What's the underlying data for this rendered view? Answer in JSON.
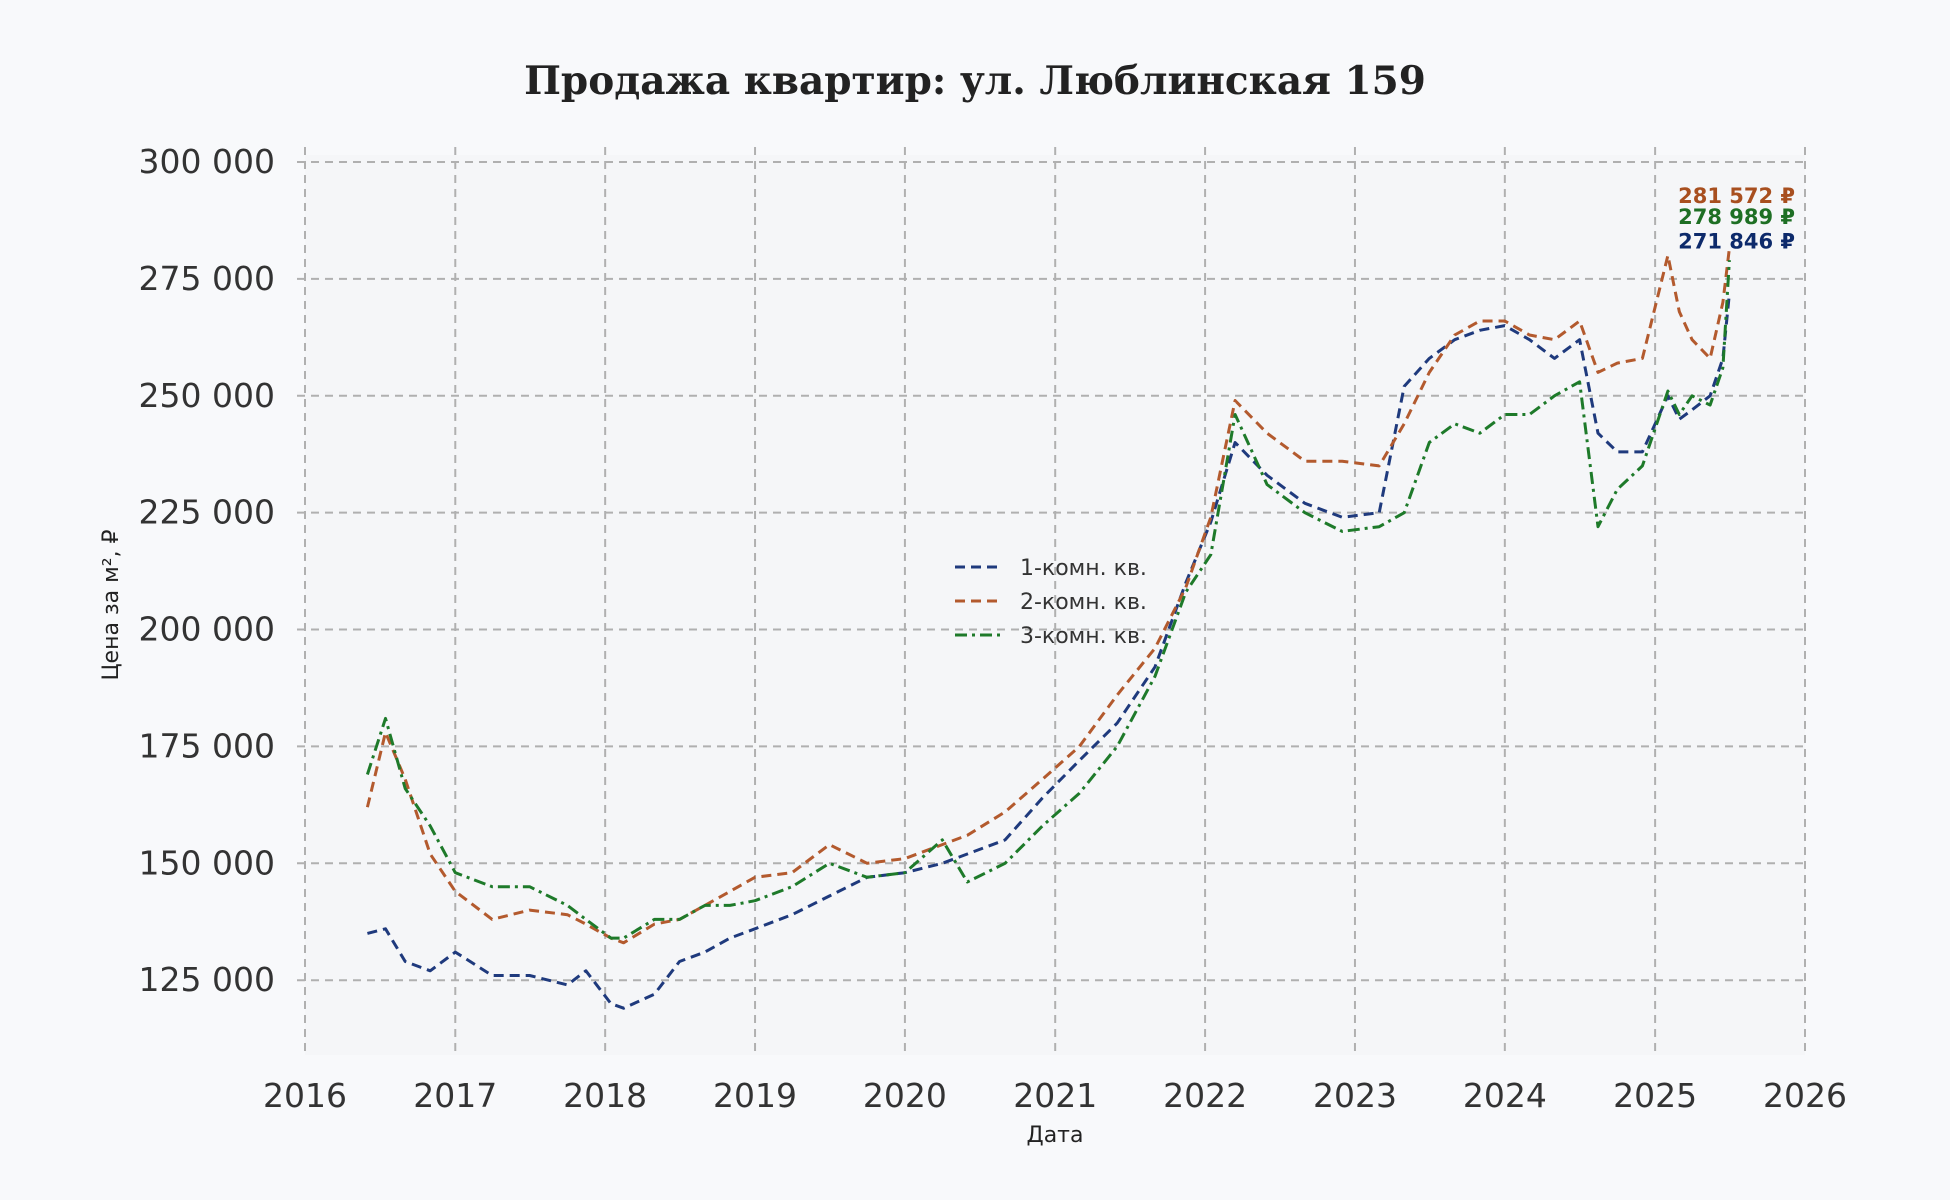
{
  "chart_data": {
    "type": "line",
    "title": "Продажа квартир: ул. Люблинская 159",
    "xlabel": "Дата",
    "ylabel": "Цена за м², ₽",
    "xlim": [
      "2016-01-01",
      "2026-01-01"
    ],
    "ylim": [
      109000,
      301500
    ],
    "x_ticks": [
      "2016",
      "2017",
      "2018",
      "2019",
      "2020",
      "2021",
      "2022",
      "2023",
      "2024",
      "2025",
      "2026"
    ],
    "y_ticks": [
      125000,
      150000,
      175000,
      200000,
      225000,
      250000,
      275000,
      300000
    ],
    "y_tick_labels": [
      "125 000",
      "150 000",
      "175 000",
      "200 000",
      "225 000",
      "250 000",
      "275 000",
      "300 000"
    ],
    "grid": true,
    "legend_position": "center",
    "series": [
      {
        "name": "1-комн. кв.",
        "color": "#1f3a7d",
        "dash": "dashed",
        "end_label": "271 846 ₽",
        "end_label_color": "#0d2a6b",
        "x": [
          "2016-06-01",
          "2016-07-15",
          "2016-09-01",
          "2016-11-01",
          "2017-01-01",
          "2017-04-01",
          "2017-07-01",
          "2017-10-01",
          "2017-11-15",
          "2018-01-15",
          "2018-02-15",
          "2018-05-01",
          "2018-07-01",
          "2018-09-01",
          "2018-11-01",
          "2019-01-01",
          "2019-04-01",
          "2019-07-01",
          "2019-10-01",
          "2020-01-01",
          "2020-04-01",
          "2020-06-01",
          "2020-09-01",
          "2020-12-01",
          "2021-03-01",
          "2021-06-01",
          "2021-09-01",
          "2021-11-15",
          "2022-01-15",
          "2022-03-15",
          "2022-06-01",
          "2022-09-01",
          "2022-12-01",
          "2023-03-01",
          "2023-05-01",
          "2023-07-01",
          "2023-09-01",
          "2023-11-01",
          "2024-01-01",
          "2024-03-01",
          "2024-05-01",
          "2024-07-01",
          "2024-08-15",
          "2024-10-01",
          "2024-12-01",
          "2025-02-01",
          "2025-03-01",
          "2025-04-01",
          "2025-05-15",
          "2025-06-15",
          "2025-07-01"
        ],
        "y": [
          135000,
          136000,
          129000,
          127000,
          131000,
          126000,
          126000,
          124000,
          127000,
          120000,
          119000,
          122000,
          129000,
          131000,
          134000,
          136000,
          139000,
          143000,
          147000,
          148000,
          150000,
          152000,
          155000,
          164000,
          172000,
          180000,
          192000,
          210000,
          223000,
          240000,
          233000,
          227000,
          224000,
          225000,
          252000,
          258000,
          262000,
          264000,
          265000,
          262000,
          258000,
          262000,
          242000,
          238000,
          238000,
          250000,
          245000,
          247000,
          250000,
          258000,
          271846
        ]
      },
      {
        "name": "2-комн. кв.",
        "color": "#b35a2e",
        "dash": "dashed",
        "end_label": "281 572 ₽",
        "end_label_color": "#a84f1f",
        "x": [
          "2016-06-01",
          "2016-07-15",
          "2016-09-01",
          "2016-11-01",
          "2017-01-01",
          "2017-04-01",
          "2017-07-01",
          "2017-10-01",
          "2017-11-15",
          "2018-01-15",
          "2018-02-15",
          "2018-05-01",
          "2018-07-01",
          "2018-09-01",
          "2018-11-01",
          "2019-01-01",
          "2019-04-01",
          "2019-07-01",
          "2019-10-01",
          "2020-01-01",
          "2020-04-01",
          "2020-06-01",
          "2020-09-01",
          "2020-12-01",
          "2021-03-01",
          "2021-06-01",
          "2021-09-01",
          "2021-11-15",
          "2022-01-15",
          "2022-03-15",
          "2022-06-01",
          "2022-09-01",
          "2022-12-01",
          "2023-03-01",
          "2023-05-01",
          "2023-07-01",
          "2023-09-01",
          "2023-11-01",
          "2024-01-01",
          "2024-03-01",
          "2024-05-01",
          "2024-07-01",
          "2024-08-15",
          "2024-10-01",
          "2024-12-01",
          "2025-02-01",
          "2025-03-01",
          "2025-04-01",
          "2025-05-15",
          "2025-06-15",
          "2025-07-01"
        ],
        "y": [
          162000,
          178000,
          168000,
          152000,
          144000,
          138000,
          140000,
          139000,
          137000,
          134000,
          133000,
          137000,
          138000,
          141000,
          144000,
          147000,
          148000,
          154000,
          150000,
          151000,
          154000,
          156000,
          161000,
          168000,
          175000,
          186000,
          196000,
          209000,
          224000,
          249000,
          242000,
          236000,
          236000,
          235000,
          244000,
          255000,
          263000,
          266000,
          266000,
          263000,
          262000,
          266000,
          255000,
          257000,
          258000,
          280000,
          268000,
          262000,
          258000,
          270000,
          281572
        ]
      },
      {
        "name": "3-комн. кв.",
        "color": "#1e7a2a",
        "dash": "dashdot",
        "end_label": "278 989 ₽",
        "end_label_color": "#1e6f24",
        "x": [
          "2016-06-01",
          "2016-07-15",
          "2016-09-01",
          "2016-11-01",
          "2017-01-01",
          "2017-04-01",
          "2017-07-01",
          "2017-10-01",
          "2017-11-15",
          "2018-01-15",
          "2018-02-15",
          "2018-05-01",
          "2018-07-01",
          "2018-09-01",
          "2018-11-01",
          "2019-01-01",
          "2019-04-01",
          "2019-07-01",
          "2019-10-01",
          "2020-01-01",
          "2020-04-01",
          "2020-06-01",
          "2020-09-01",
          "2020-12-01",
          "2021-03-01",
          "2021-06-01",
          "2021-09-01",
          "2021-11-15",
          "2022-01-15",
          "2022-03-15",
          "2022-06-01",
          "2022-09-01",
          "2022-12-01",
          "2023-03-01",
          "2023-05-01",
          "2023-07-01",
          "2023-09-01",
          "2023-11-01",
          "2024-01-01",
          "2024-03-01",
          "2024-05-01",
          "2024-07-01",
          "2024-08-15",
          "2024-10-01",
          "2024-12-01",
          "2025-02-01",
          "2025-03-01",
          "2025-04-01",
          "2025-05-15",
          "2025-06-15",
          "2025-07-01"
        ],
        "y": [
          169000,
          181000,
          166000,
          158000,
          148000,
          145000,
          145000,
          141000,
          138000,
          134000,
          134000,
          138000,
          138000,
          141000,
          141000,
          142000,
          145000,
          150000,
          147000,
          148000,
          155000,
          146000,
          150000,
          158000,
          165000,
          175000,
          190000,
          208000,
          216000,
          246000,
          231000,
          225000,
          221000,
          222000,
          225000,
          240000,
          244000,
          242000,
          246000,
          246000,
          250000,
          253000,
          222000,
          230000,
          235000,
          251000,
          246000,
          250000,
          248000,
          256000,
          278989
        ]
      }
    ]
  }
}
